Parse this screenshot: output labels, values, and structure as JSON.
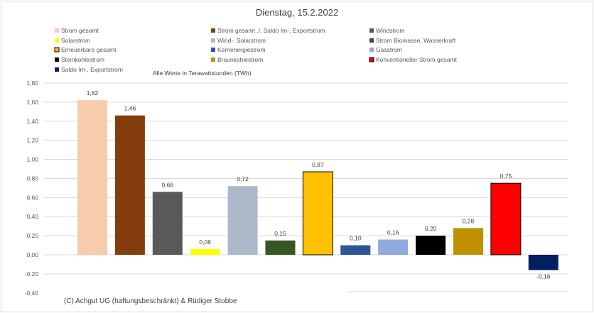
{
  "chart_data": {
    "type": "bar",
    "title": "Dienstag, 15.2.2022",
    "subtitle": "Alle Werte in Terawattstunden (TWh)",
    "footer": "(C) Achgut UG (haftungsbeschränkt) & Rüdiger Stobbe",
    "ylim": [
      -0.4,
      1.8
    ],
    "yticks": [
      "1,80",
      "1,60",
      "1,40",
      "1,20",
      "1,00",
      "0,80",
      "0,60",
      "0,40",
      "0,20",
      "0,00",
      "-0,20",
      "-0,40"
    ],
    "ytick_values": [
      1.8,
      1.6,
      1.4,
      1.2,
      1.0,
      0.8,
      0.6,
      0.4,
      0.2,
      0.0,
      -0.2,
      -0.4
    ],
    "grid": true,
    "legend_placement": "top",
    "series": [
      {
        "name": "Strom gesamt",
        "value": 1.62,
        "label": "1,62",
        "color": "#F8CBAD",
        "border": false
      },
      {
        "name": "Strom gesamt ./. Saldo Im-, Exportstrom",
        "value": 1.46,
        "label": "1,46",
        "color": "#843C0C",
        "border": false
      },
      {
        "name": "Windstrom",
        "value": 0.66,
        "label": "0,66",
        "color": "#595959",
        "border": false
      },
      {
        "name": "Solarstrom",
        "value": 0.06,
        "label": "0,06",
        "color": "#FFFF00",
        "border": false
      },
      {
        "name": "Wind-, Solarstrom",
        "value": 0.72,
        "label": "0,72",
        "color": "#ADB9CA",
        "border": false
      },
      {
        "name": "Strom Biomasse, Wasserkraft",
        "value": 0.15,
        "label": "0,15",
        "color": "#375623",
        "border": false
      },
      {
        "name": "Erneuerbare gesamt",
        "value": 0.87,
        "label": "0,87",
        "color": "#FFC000",
        "border": true
      },
      {
        "name": "Kernenergiestrom",
        "value": 0.1,
        "label": "0,10",
        "color": "#2F5597",
        "border": false
      },
      {
        "name": "Gasstrom",
        "value": 0.16,
        "label": "0,16",
        "color": "#8FAADC",
        "border": false
      },
      {
        "name": "Steinkohlestrom",
        "value": 0.2,
        "label": "0,20",
        "color": "#000000",
        "border": false
      },
      {
        "name": "Braunkohlestrom",
        "value": 0.28,
        "label": "0,28",
        "color": "#BF9000",
        "border": false
      },
      {
        "name": "Konventioneller Strom gesamt",
        "value": 0.75,
        "label": "0,75",
        "color": "#FF0000",
        "border": true
      },
      {
        "name": "Saldo Im-, Exportstrom",
        "value": -0.16,
        "label": "-0,16",
        "color": "#002060",
        "border": false
      }
    ]
  }
}
